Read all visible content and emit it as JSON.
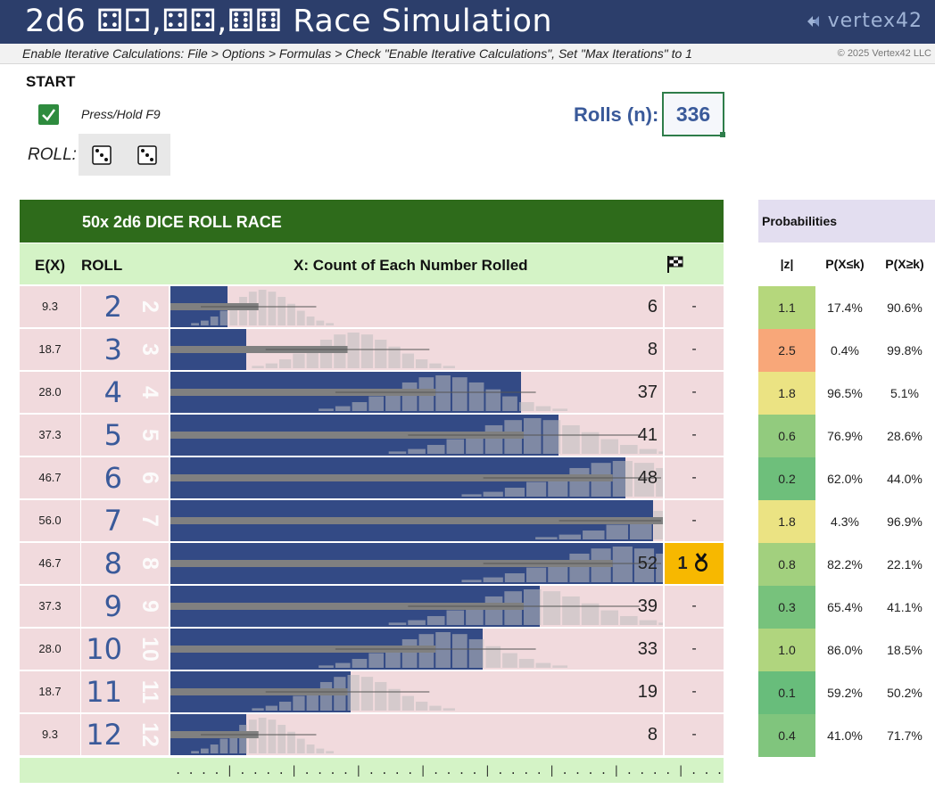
{
  "app": {
    "title": "2d6 ⚃⚀,⚃⚃,⚅⚅ Race Simulation",
    "logo": "vertex42",
    "instructions": "Enable Iterative Calculations: File > Options > Formulas > Check \"Enable Iterative Calculations\", Set \"Max Iterations\" to 1",
    "copyright": "© 2025 Vertex42 LLC"
  },
  "controls": {
    "start_label": "START",
    "start_checked": true,
    "press_label": "Press/Hold F9",
    "roll_label": "ROLL:",
    "dice": [
      3,
      3
    ],
    "rolls_label": "Rolls (n):",
    "rolls_value": "336"
  },
  "race": {
    "title": "50x 2d6 DICE ROLL RACE",
    "headers": {
      "ex": "E(X)",
      "roll": "ROLL",
      "count": "X: Count of Each Number Rolled",
      "flag_icon": "checkered-flag-icon"
    },
    "max_count": 52,
    "rows": [
      {
        "ex": "9.3",
        "roll": "2",
        "count": "6",
        "count_value": 6,
        "place": "-"
      },
      {
        "ex": "18.7",
        "roll": "3",
        "count": "8",
        "count_value": 8,
        "place": "-"
      },
      {
        "ex": "28.0",
        "roll": "4",
        "count": "37",
        "count_value": 37,
        "place": "-"
      },
      {
        "ex": "37.3",
        "roll": "5",
        "count": "41",
        "count_value": 41,
        "place": "-"
      },
      {
        "ex": "46.7",
        "roll": "6",
        "count": "48",
        "count_value": 48,
        "place": "-"
      },
      {
        "ex": "56.0",
        "roll": "7",
        "count": "",
        "count_value": 51,
        "place": "-"
      },
      {
        "ex": "46.7",
        "roll": "8",
        "count": "52",
        "count_value": 52,
        "place": "1",
        "winner": true
      },
      {
        "ex": "37.3",
        "roll": "9",
        "count": "39",
        "count_value": 39,
        "place": "-"
      },
      {
        "ex": "28.0",
        "roll": "10",
        "count": "33",
        "count_value": 33,
        "place": "-"
      },
      {
        "ex": "18.7",
        "roll": "11",
        "count": "19",
        "count_value": 19,
        "place": "-"
      },
      {
        "ex": "9.3",
        "roll": "12",
        "count": "8",
        "count_value": 8,
        "place": "-"
      }
    ],
    "axis_text": ". . . . | . . . . | . . . . | . . . . | . . . . | . . . . | . . . . | . . . . | . . . . | . . . ."
  },
  "probabilities": {
    "title": "Probabilities",
    "headers": {
      "z": "|z|",
      "le": "P(X≤k)",
      "ge": "P(X≥k)"
    },
    "rows": [
      {
        "z": "1.1",
        "le": "17.4%",
        "ge": "90.6%",
        "color": "#b5d77c"
      },
      {
        "z": "2.5",
        "le": "0.4%",
        "ge": "99.8%",
        "color": "#f8a779"
      },
      {
        "z": "1.8",
        "le": "96.5%",
        "ge": "5.1%",
        "color": "#ebe383"
      },
      {
        "z": "0.6",
        "le": "76.9%",
        "ge": "28.6%",
        "color": "#92cb7e"
      },
      {
        "z": "0.2",
        "le": "62.0%",
        "ge": "44.0%",
        "color": "#6ebf7b"
      },
      {
        "z": "1.8",
        "le": "4.3%",
        "ge": "96.9%",
        "color": "#ebe383"
      },
      {
        "z": "0.8",
        "le": "82.2%",
        "ge": "22.1%",
        "color": "#a2d07e"
      },
      {
        "z": "0.3",
        "le": "65.4%",
        "ge": "41.1%",
        "color": "#77c27c"
      },
      {
        "z": "1.0",
        "le": "86.0%",
        "ge": "18.5%",
        "color": "#b0d57e"
      },
      {
        "z": "0.1",
        "le": "59.2%",
        "ge": "50.2%",
        "color": "#68bd7b"
      },
      {
        "z": "0.4",
        "le": "41.0%",
        "ge": "71.7%",
        "color": "#80c57d"
      }
    ]
  },
  "colors": {
    "title_bar": "#2c3e6b",
    "race_bar": "#334a85",
    "race_header": "#2e6b1b",
    "winner": "#f7b800"
  }
}
